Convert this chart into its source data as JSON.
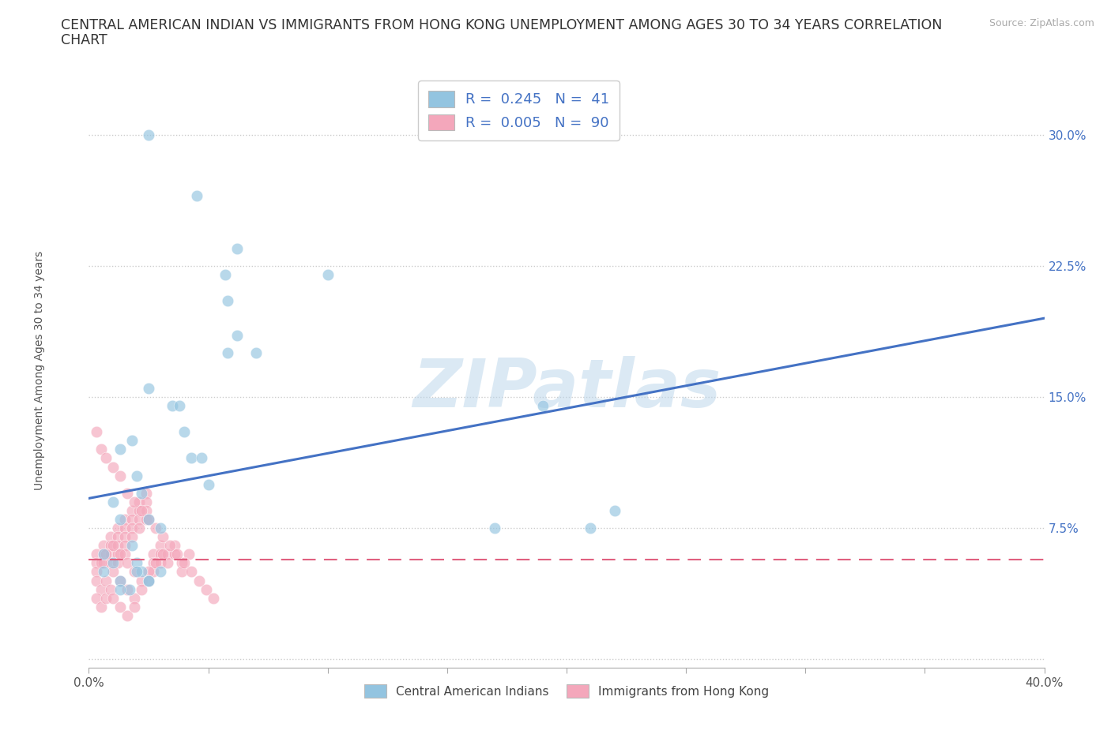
{
  "title_line1": "CENTRAL AMERICAN INDIAN VS IMMIGRANTS FROM HONG KONG UNEMPLOYMENT AMONG AGES 30 TO 34 YEARS CORRELATION",
  "title_line2": "CHART",
  "source": "Source: ZipAtlas.com",
  "ylabel": "Unemployment Among Ages 30 to 34 years",
  "xlim": [
    0,
    0.4
  ],
  "ylim": [
    -0.005,
    0.335
  ],
  "yticks": [
    0.0,
    0.075,
    0.15,
    0.225,
    0.3
  ],
  "ytick_labels": [
    "",
    "7.5%",
    "15.0%",
    "22.5%",
    "30.0%"
  ],
  "xticks": [
    0.0,
    0.05,
    0.1,
    0.15,
    0.2,
    0.25,
    0.3,
    0.35,
    0.4
  ],
  "xtick_labels": [
    "0.0%",
    "",
    "",
    "",
    "",
    "",
    "",
    "",
    "40.0%"
  ],
  "blue_color": "#93c4e0",
  "pink_color": "#f4a7bb",
  "blue_line_color": "#4472c4",
  "pink_line_color": "#e06080",
  "watermark": "ZIPatlas",
  "legend_R_blue": "0.245",
  "legend_N_blue": "41",
  "legend_R_pink": "0.005",
  "legend_N_pink": "90",
  "blue_scatter_x": [
    0.025,
    0.045,
    0.057,
    0.062,
    0.058,
    0.062,
    0.07,
    0.058,
    0.025,
    0.035,
    0.038,
    0.04,
    0.043,
    0.047,
    0.05,
    0.013,
    0.018,
    0.02,
    0.022,
    0.025,
    0.03,
    0.01,
    0.013,
    0.018,
    0.02,
    0.022,
    0.025,
    0.03,
    0.006,
    0.01,
    0.013,
    0.017,
    0.1,
    0.17,
    0.19,
    0.21,
    0.22,
    0.006,
    0.013,
    0.02,
    0.025
  ],
  "blue_scatter_y": [
    0.3,
    0.265,
    0.22,
    0.235,
    0.205,
    0.185,
    0.175,
    0.175,
    0.155,
    0.145,
    0.145,
    0.13,
    0.115,
    0.115,
    0.1,
    0.12,
    0.125,
    0.105,
    0.095,
    0.08,
    0.075,
    0.09,
    0.08,
    0.065,
    0.055,
    0.05,
    0.045,
    0.05,
    0.06,
    0.055,
    0.045,
    0.04,
    0.22,
    0.075,
    0.145,
    0.075,
    0.085,
    0.05,
    0.04,
    0.05,
    0.045
  ],
  "pink_scatter_x": [
    0.003,
    0.003,
    0.006,
    0.006,
    0.006,
    0.009,
    0.009,
    0.009,
    0.009,
    0.012,
    0.012,
    0.012,
    0.012,
    0.012,
    0.015,
    0.015,
    0.015,
    0.015,
    0.015,
    0.018,
    0.018,
    0.018,
    0.018,
    0.021,
    0.021,
    0.021,
    0.021,
    0.024,
    0.024,
    0.024,
    0.024,
    0.027,
    0.027,
    0.027,
    0.03,
    0.03,
    0.03,
    0.033,
    0.033,
    0.036,
    0.036,
    0.039,
    0.039,
    0.042,
    0.003,
    0.005,
    0.007,
    0.01,
    0.013,
    0.016,
    0.019,
    0.022,
    0.025,
    0.028,
    0.031,
    0.003,
    0.005,
    0.007,
    0.01,
    0.013,
    0.016,
    0.019,
    0.022,
    0.025,
    0.003,
    0.005,
    0.007,
    0.009,
    0.01,
    0.013,
    0.016,
    0.019,
    0.003,
    0.005,
    0.007,
    0.01,
    0.013,
    0.016,
    0.019,
    0.022,
    0.025,
    0.028,
    0.031,
    0.034,
    0.037,
    0.04,
    0.043,
    0.046,
    0.049,
    0.052
  ],
  "pink_scatter_y": [
    0.06,
    0.055,
    0.065,
    0.06,
    0.055,
    0.07,
    0.065,
    0.06,
    0.055,
    0.075,
    0.07,
    0.065,
    0.06,
    0.055,
    0.08,
    0.075,
    0.07,
    0.065,
    0.06,
    0.085,
    0.08,
    0.075,
    0.07,
    0.09,
    0.085,
    0.08,
    0.075,
    0.095,
    0.09,
    0.085,
    0.08,
    0.06,
    0.055,
    0.05,
    0.065,
    0.06,
    0.055,
    0.06,
    0.055,
    0.065,
    0.06,
    0.055,
    0.05,
    0.06,
    0.05,
    0.055,
    0.06,
    0.065,
    0.06,
    0.055,
    0.05,
    0.045,
    0.05,
    0.055,
    0.06,
    0.045,
    0.04,
    0.045,
    0.05,
    0.045,
    0.04,
    0.035,
    0.04,
    0.045,
    0.035,
    0.03,
    0.035,
    0.04,
    0.035,
    0.03,
    0.025,
    0.03,
    0.13,
    0.12,
    0.115,
    0.11,
    0.105,
    0.095,
    0.09,
    0.085,
    0.08,
    0.075,
    0.07,
    0.065,
    0.06,
    0.055,
    0.05,
    0.045,
    0.04,
    0.035
  ],
  "blue_line_x": [
    0.0,
    0.4
  ],
  "blue_line_y_start": 0.092,
  "blue_line_y_end": 0.195,
  "pink_line_y": 0.057,
  "grid_color": "#cccccc",
  "background_color": "#ffffff",
  "title_fontsize": 12.5,
  "axis_label_fontsize": 10,
  "tick_fontsize": 11,
  "legend_fontsize": 13,
  "dot_size": 110
}
